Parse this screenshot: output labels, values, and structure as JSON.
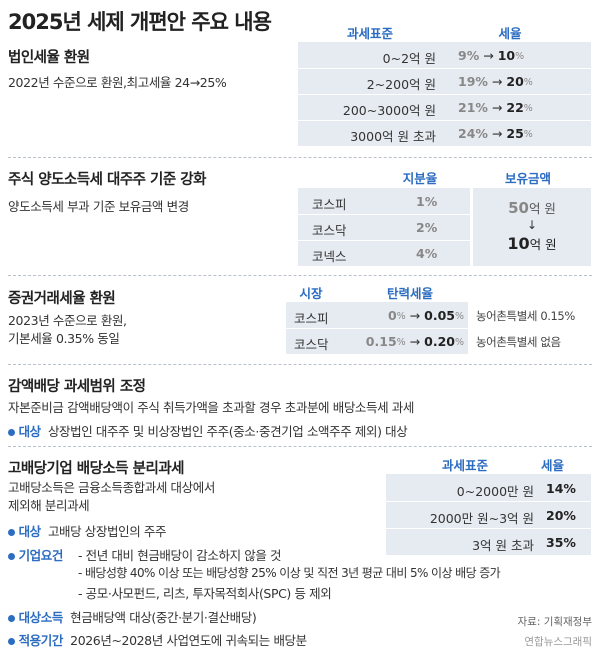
{
  "title": "2025년 세제 개편안 주요 내용",
  "corporate": {
    "title": "법인세율 환원",
    "desc": "2022년 수준으로 환원,최고세율 24→25%",
    "headers": [
      "과세표준",
      "세율"
    ],
    "rows": [
      {
        "base": "0~2억 원",
        "from": "9",
        "to": "10"
      },
      {
        "base": "2~200억 원",
        "from": "19",
        "to": "20"
      },
      {
        "base": "200~3000억 원",
        "from": "21",
        "to": "22"
      },
      {
        "base": "3000억 원 초과",
        "from": "24",
        "to": "25"
      }
    ],
    "unit": "%",
    "arrow": "→"
  },
  "stock": {
    "title": "주식 양도소득세 대주주 기준 강화",
    "desc": "양도소득세 부과 기준 보유금액 변경",
    "headers": [
      "지분율",
      "보유금액"
    ],
    "markets": [
      {
        "name": "코스피",
        "share": "1%"
      },
      {
        "name": "코스닥",
        "share": "2%"
      },
      {
        "name": "코넥스",
        "share": "4%"
      }
    ],
    "amount_from_num": "50",
    "amount_from_unit": "억 원",
    "arrow": "↓",
    "amount_to_num": "10",
    "amount_to_unit": "억 원"
  },
  "securities": {
    "title": "증권거래세율 환원",
    "desc_line1": "2023년 수준으로 환원,",
    "desc_line2": "기본세율 0.35% 동일",
    "headers": [
      "시장",
      "탄력세율"
    ],
    "rows": [
      {
        "market": "코스피",
        "from": "0",
        "to": "0.05",
        "note": "농어촌특별세 0.15%"
      },
      {
        "market": "코스닥",
        "from": "0.15",
        "to": "0.20",
        "note": "농어촌특별세 없음"
      }
    ],
    "unit": "%",
    "arrow": "→"
  },
  "reduction": {
    "title": "감액배당 과세범위 조정",
    "desc": "자본준비금 감액배당액이 주식 취득가액을 초과할 경우 초과분에 배당소득세 과세",
    "target_label": "대상",
    "target_text": "상장법인 대주주 및 비상장법인 주주(중소·중견기업 소액주주 제외) 대상"
  },
  "dividend": {
    "title": "고배당기업 배당소득 분리과세",
    "desc_line1": "고배당소득은 금융소득종합과세 대상에서",
    "desc_line2": "제외해 분리과세",
    "headers": [
      "과세표준",
      "세율"
    ],
    "rows": [
      {
        "base": "0~2000만 원",
        "rate": "14%"
      },
      {
        "base": "2000만 원~3억 원",
        "rate": "20%"
      },
      {
        "base": "3억 원 초과",
        "rate": "35%"
      }
    ],
    "target_label": "대상",
    "target_text": "고배당 상장법인의 주주",
    "req_label": "기업요건",
    "req_lines": [
      "- 전년 대비 현금배당이 감소하지 않을 것",
      "- 배당성향 40% 이상 또는 배당성향 25% 이상 및 직전 3년 평균 대비 5% 이상 배당 증가",
      "- 공모·사모펀드, 리츠, 투자목적회사(SPC) 등 제외"
    ],
    "income_label": "대상소득",
    "income_text": "현금배당액 대상(중간·분기·결산배당)",
    "period_label": "적용기간",
    "period_text": "2026년~2028년 사업연도에 귀속되는 배당분"
  },
  "source": "자료: 기획재정부",
  "credit": "연합뉴스그래픽",
  "colors": {
    "accent": "#2c6cc1",
    "panel": "#e6ebf1"
  }
}
